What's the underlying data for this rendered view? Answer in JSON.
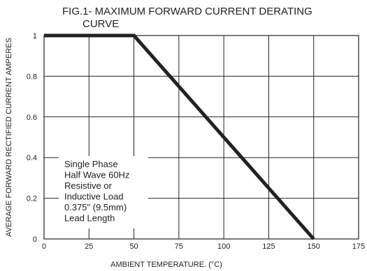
{
  "chart_data": {
    "type": "line",
    "title_line1": "FIG.1- MAXIMUM FORWARD CURRENT DERATING",
    "title_line2": "CURVE",
    "xlabel": "AMBIENT TEMPERATURE. (°C)",
    "ylabel": "AVERAGE FORWARD RECTIFIED CURRENT AMPERES",
    "xlim": [
      0,
      175
    ],
    "ylim": [
      0,
      1.0
    ],
    "x_ticks": [
      "0",
      "25",
      "50",
      "75",
      "100",
      "125",
      "150",
      "175"
    ],
    "y_ticks": [
      "0",
      "0.2",
      "0.4",
      "0.6",
      "0.8",
      "1"
    ],
    "grid": true,
    "series": [
      {
        "x": [
          0,
          50,
          150
        ],
        "y": [
          1.0,
          1.0,
          0.0
        ],
        "color": "#222222"
      }
    ],
    "annotation_lines": [
      "Single Phase",
      "Half Wave 60Hz",
      "Resistive or",
      "Inductive Load",
      "0.375\" (9.5mm)",
      "Lead Length"
    ]
  }
}
